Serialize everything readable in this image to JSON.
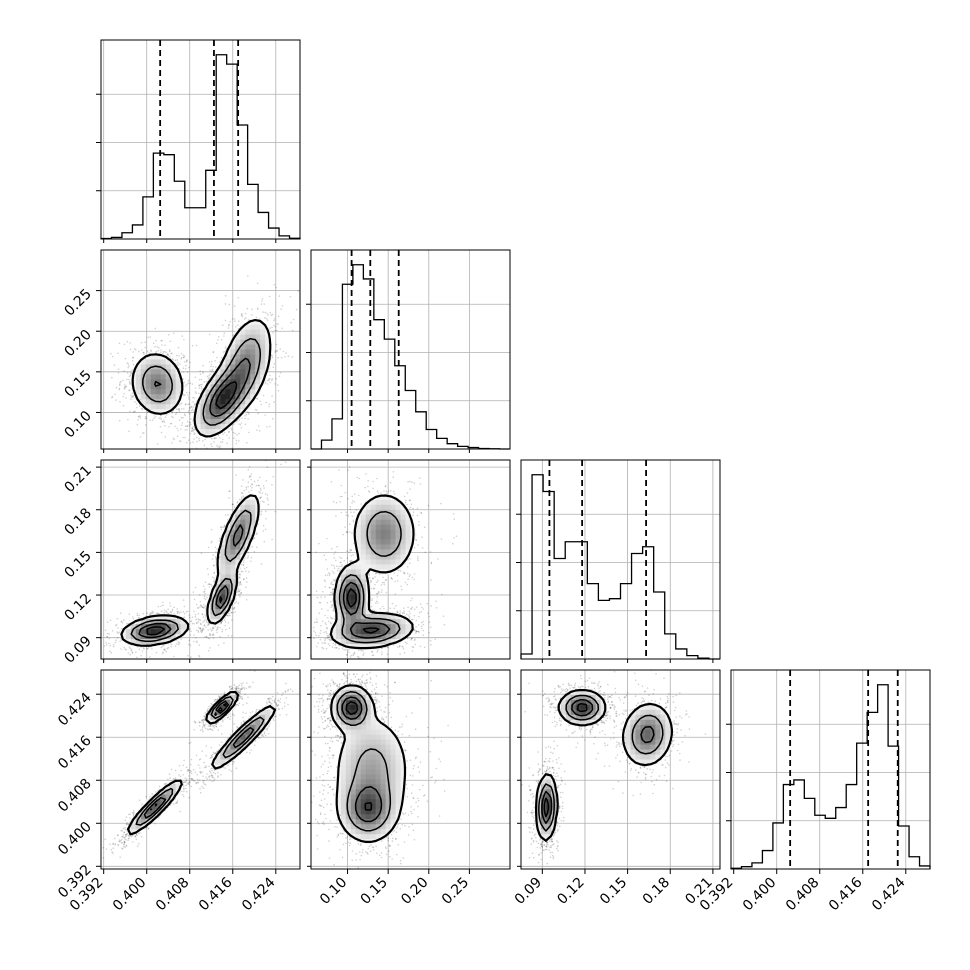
{
  "chart_data": {
    "type": "corner",
    "variables": 4,
    "grid": true,
    "params": [
      {
        "index": 0,
        "range": [
          0.3915,
          0.4285
        ],
        "ticks": [
          "0.392",
          "0.400",
          "0.408",
          "0.416",
          "0.424"
        ],
        "tick_values": [
          0.392,
          0.4,
          0.408,
          0.416,
          0.424
        ],
        "quantiles": [
          0.4025,
          0.4125,
          0.417
        ],
        "hist_counts": [
          0.3,
          1.0,
          4.0,
          9.0,
          27.0,
          55.0,
          54.0,
          37.0,
          20.0,
          20.0,
          44.0,
          118.0,
          112.0,
          73.0,
          35.0,
          17.0,
          7.0,
          2.0,
          0.5
        ]
      },
      {
        "index": 1,
        "range": [
          0.055,
          0.3
        ],
        "ticks": [
          "0.10",
          "0.15",
          "0.20",
          "0.25"
        ],
        "tick_values": [
          0.1,
          0.15,
          0.2,
          0.25
        ],
        "quantiles": [
          0.105,
          0.128,
          0.163
        ],
        "hist_counts": [
          0,
          5,
          17,
          93,
          104,
          96,
          73,
          62,
          47,
          33,
          21,
          11,
          6,
          3,
          1.5,
          0.8,
          0.3,
          0.1,
          0
        ]
      },
      {
        "index": 2,
        "range": [
          0.075,
          0.215
        ],
        "ticks": [
          "0.09",
          "0.12",
          "0.15",
          "0.18",
          "0.21"
        ],
        "tick_values": [
          0.09,
          0.12,
          0.15,
          0.18,
          0.21
        ],
        "quantiles": [
          0.095,
          0.118,
          0.163
        ],
        "hist_counts": [
          3,
          110,
          100,
          60,
          70,
          70,
          45,
          35,
          36,
          45,
          63,
          67,
          40,
          15,
          6,
          2,
          0.5,
          0
        ]
      },
      {
        "index": 3,
        "range": [
          0.3915,
          0.4285
        ],
        "ticks": [
          "0.392",
          "0.400",
          "0.408",
          "0.416",
          "0.424"
        ],
        "tick_values": [
          0.392,
          0.4,
          0.408,
          0.416,
          0.424
        ],
        "quantiles": [
          0.4025,
          0.417,
          0.4225
        ],
        "hist_counts": [
          0.5,
          1.5,
          4.0,
          12.0,
          30.0,
          55.0,
          58.0,
          46.0,
          35.0,
          33.0,
          40.0,
          55.0,
          82.0,
          102.0,
          120.0,
          80.0,
          28.0,
          8.0,
          2.0
        ]
      }
    ],
    "pairs": [
      {
        "x": 0,
        "y": 1,
        "modes": [
          {
            "cx": 0.402,
            "cy": 0.135,
            "sx": 0.0025,
            "sy": 0.02,
            "rho": -0.1,
            "w": 0.7
          },
          {
            "cx": 0.414,
            "cy": 0.115,
            "sx": 0.0025,
            "sy": 0.022,
            "rho": 0.55,
            "w": 1.0
          },
          {
            "cx": 0.4185,
            "cy": 0.16,
            "sx": 0.0025,
            "sy": 0.03,
            "rho": 0.4,
            "w": 0.65
          }
        ]
      },
      {
        "x": 0,
        "y": 2,
        "modes": [
          {
            "cx": 0.4015,
            "cy": 0.095,
            "sx": 0.003,
            "sy": 0.005,
            "rho": 0.3,
            "w": 1.0
          },
          {
            "cx": 0.414,
            "cy": 0.118,
            "sx": 0.0013,
            "sy": 0.009,
            "rho": 0.6,
            "w": 0.9
          },
          {
            "cx": 0.417,
            "cy": 0.162,
            "sx": 0.002,
            "sy": 0.015,
            "rho": 0.7,
            "w": 0.7
          }
        ]
      },
      {
        "x": 1,
        "y": 2,
        "modes": [
          {
            "cx": 0.105,
            "cy": 0.118,
            "sx": 0.01,
            "sy": 0.011,
            "rho": 0.0,
            "w": 1.0
          },
          {
            "cx": 0.13,
            "cy": 0.095,
            "sx": 0.025,
            "sy": 0.006,
            "rho": 0.2,
            "w": 0.9
          },
          {
            "cx": 0.145,
            "cy": 0.163,
            "sx": 0.02,
            "sy": 0.015,
            "rho": 0.0,
            "w": 0.6
          }
        ]
      },
      {
        "x": 0,
        "y": 3,
        "modes": [
          {
            "cx": 0.4015,
            "cy": 0.403,
            "sx": 0.0025,
            "sy": 0.0025,
            "rho": 0.92,
            "w": 0.9
          },
          {
            "cx": 0.414,
            "cy": 0.4215,
            "sx": 0.0014,
            "sy": 0.0014,
            "rho": 0.8,
            "w": 1.0
          },
          {
            "cx": 0.418,
            "cy": 0.416,
            "sx": 0.003,
            "sy": 0.003,
            "rho": 0.93,
            "w": 0.8
          }
        ]
      },
      {
        "x": 1,
        "y": 3,
        "modes": [
          {
            "cx": 0.105,
            "cy": 0.4215,
            "sx": 0.012,
            "sy": 0.002,
            "rho": 0.0,
            "w": 1.0
          },
          {
            "cx": 0.13,
            "cy": 0.41,
            "sx": 0.025,
            "sy": 0.0055,
            "rho": 0.0,
            "w": 0.45
          },
          {
            "cx": 0.125,
            "cy": 0.4025,
            "sx": 0.018,
            "sy": 0.003,
            "rho": 0.0,
            "w": 0.7
          }
        ]
      },
      {
        "x": 2,
        "y": 3,
        "modes": [
          {
            "cx": 0.093,
            "cy": 0.403,
            "sx": 0.0035,
            "sy": 0.003,
            "rho": 0.1,
            "w": 1.0
          },
          {
            "cx": 0.118,
            "cy": 0.4215,
            "sx": 0.008,
            "sy": 0.0016,
            "rho": 0.0,
            "w": 0.95
          },
          {
            "cx": 0.164,
            "cy": 0.4165,
            "sx": 0.009,
            "sy": 0.003,
            "rho": 0.1,
            "w": 0.7
          }
        ]
      }
    ]
  }
}
